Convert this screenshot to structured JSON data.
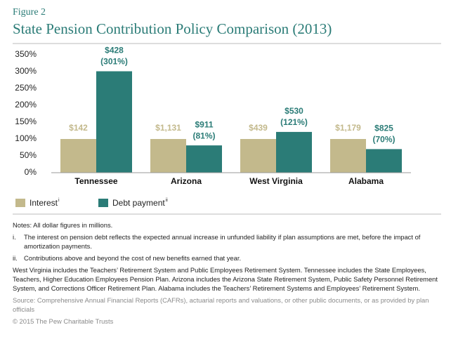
{
  "chart_data": {
    "type": "bar",
    "figure_label": "Figure 2",
    "title": "State Pension Contribution Policy Comparison (2013)",
    "categories": [
      "Tennessee",
      "Arizona",
      "West Virginia",
      "Alabama"
    ],
    "series": [
      {
        "name": "Interest",
        "name_note": "i",
        "color": "#c3b98c",
        "values": [
          100,
          100,
          100,
          100
        ],
        "dollar_labels": [
          "$142",
          "$1,131",
          "$439",
          "$1,179"
        ]
      },
      {
        "name": "Debt payment",
        "name_note": "ii",
        "color": "#2b7c77",
        "values": [
          301,
          81,
          121,
          70
        ],
        "dollar_labels": [
          "$428",
          "$911",
          "$530",
          "$825"
        ],
        "value_labels": [
          "(301%)",
          "(81%)",
          "(121%)",
          "(70%)"
        ]
      }
    ],
    "ylim": [
      0,
      350
    ],
    "yticks": [
      {
        "value": 0,
        "label": "0%"
      },
      {
        "value": 50,
        "label": "50%"
      },
      {
        "value": 100,
        "label": "100%"
      },
      {
        "value": 150,
        "label": "150%"
      },
      {
        "value": 200,
        "label": "200%"
      },
      {
        "value": 250,
        "label": "250%"
      },
      {
        "value": 300,
        "label": "300%"
      },
      {
        "value": 350,
        "label": "350%"
      }
    ],
    "grid": false,
    "notes": {
      "general": "Notes: All dollar figures in millions.",
      "items": [
        {
          "marker": "i.",
          "text": "The interest on pension debt reflects the expected annual increase in unfunded liability if plan assumptions are met, before the impact of amortization payments."
        },
        {
          "marker": "ii.",
          "text": "Contributions above and beyond the cost of new benefits earned that year."
        }
      ],
      "paragraph": "West Virginia includes the Teachers’ Retirement System and Public Employees Retirement System. Tennessee includes the State Employees, Teachers, Higher Education Employees Pension Plan. Arizona includes the Arizona State Retirement System, Public Safety Personnel Retirement System, and Corrections Officer Retirement Plan. Alabama includes the Teachers’ Retirement Systems and Employees’ Retirement System.",
      "source": "Source: Comprehensive Annual Financial Reports (CAFRs), actuarial reports and valuations, or other public documents, or as provided by plan officials",
      "copyright": "© 2015 The Pew Charitable Trusts"
    }
  }
}
